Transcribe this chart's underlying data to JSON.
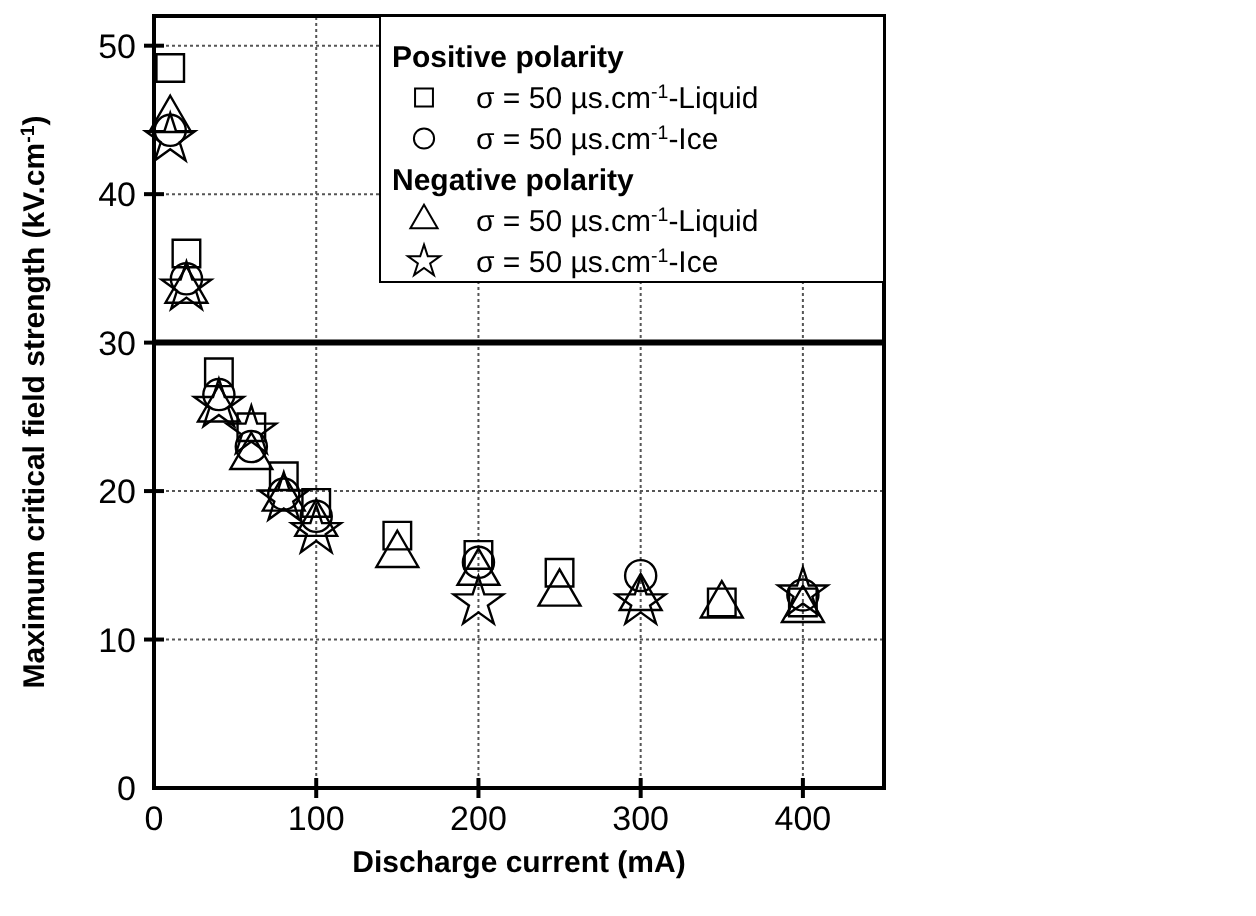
{
  "chart_data": {
    "type": "scatter",
    "xlabel": "Discharge current (mA)",
    "ylabel": "Maximum critical field strength (kV.cm$^{-1}$)",
    "xlim": [
      0,
      450
    ],
    "ylim": [
      0,
      52
    ],
    "xticks": [
      0,
      100,
      200,
      300,
      400
    ],
    "yticks": [
      0,
      10,
      20,
      30,
      40,
      50
    ],
    "grid": true,
    "legend": "top right",
    "annotations": [
      "Positive polarity",
      "Negative polarity"
    ],
    "ref_lines": [
      {
        "axis": "y",
        "value": 30,
        "color": "#000000",
        "line_style": "solid"
      }
    ],
    "series": [
      {
        "name": "σ = 50 µs.cm$^{-1}$-Liquid",
        "color": "#000000",
        "marker": "square",
        "x": [
          10,
          20,
          40,
          60,
          80,
          100,
          150,
          200,
          250,
          350,
          400
        ],
        "values": [
          48.5,
          36,
          28,
          24.3,
          21,
          19.2,
          17,
          15.7,
          14.5,
          12.5,
          12.5
        ]
      },
      {
        "name": "σ = 50 µs.cm$^{-1}$-Ice",
        "color": "#000000",
        "marker": "circle",
        "x": [
          10,
          20,
          40,
          60,
          80,
          100,
          200,
          300,
          400
        ],
        "values": [
          44.3,
          34.3,
          26.5,
          23,
          19.8,
          18.3,
          15.2,
          14.3,
          13
        ]
      },
      {
        "name": "σ = 50 µs.cm$^{-1}$-Liquid",
        "color": "#000000",
        "marker": "triangle",
        "x": [
          10,
          20,
          40,
          60,
          80,
          100,
          150,
          200,
          250,
          300,
          350,
          400
        ],
        "values": [
          45,
          33.5,
          25.5,
          22.3,
          19.5,
          17.8,
          15.7,
          14.5,
          13.1,
          12.8,
          12.3,
          12
        ]
      },
      {
        "name": "σ = 50 µs.cm$^{-1}$-Ice",
        "color": "#000000",
        "marker": "star",
        "x": [
          10,
          20,
          40,
          60,
          80,
          100,
          200,
          300,
          400
        ],
        "values": [
          43.7,
          33.7,
          25.8,
          24,
          19.5,
          17.3,
          12.5,
          12.5,
          13.1
        ]
      }
    ]
  }
}
